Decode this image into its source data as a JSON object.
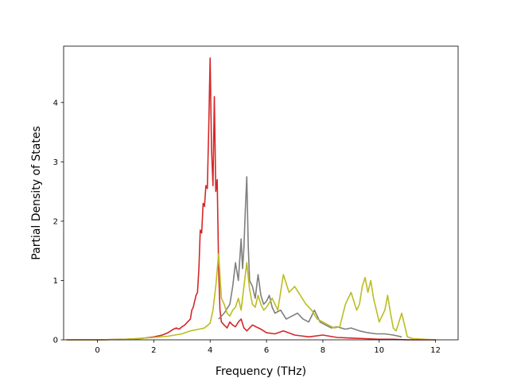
{
  "chart_data": {
    "type": "line",
    "title": "",
    "xlabel": "Frequency (THz)",
    "ylabel": "Partial Density of States",
    "xlim": [
      -1.2,
      12.8
    ],
    "ylim": [
      0,
      4.95
    ],
    "xticks": [
      0,
      2,
      4,
      6,
      8,
      10,
      12
    ],
    "yticks": [
      0,
      1,
      2,
      3,
      4
    ],
    "grid": false,
    "legend": "none",
    "series": [
      {
        "color": "#d62728",
        "x": [
          -1.1,
          0.0,
          1.0,
          1.5,
          2.0,
          2.3,
          2.5,
          2.7,
          2.8,
          2.9,
          3.0,
          3.1,
          3.2,
          3.3,
          3.35,
          3.4,
          3.5,
          3.55,
          3.6,
          3.65,
          3.7,
          3.75,
          3.8,
          3.85,
          3.9,
          3.95,
          4.0,
          4.05,
          4.1,
          4.15,
          4.2,
          4.25,
          4.3,
          4.35,
          4.4,
          4.5,
          4.6,
          4.7,
          4.8,
          4.9,
          5.0,
          5.1,
          5.2,
          5.3,
          5.5,
          5.8,
          6.0,
          6.3,
          6.6,
          7.0,
          7.5,
          8.0,
          8.5,
          9.0,
          9.5,
          10.0,
          10.5,
          11.0,
          12.0
        ],
        "y": [
          0,
          0,
          0.01,
          0.02,
          0.05,
          0.08,
          0.12,
          0.18,
          0.2,
          0.18,
          0.22,
          0.25,
          0.3,
          0.35,
          0.5,
          0.55,
          0.75,
          0.8,
          1.2,
          1.85,
          1.8,
          2.3,
          2.25,
          2.6,
          2.55,
          3.6,
          4.75,
          3.2,
          2.6,
          4.1,
          2.5,
          2.7,
          1.2,
          0.5,
          0.3,
          0.25,
          0.2,
          0.3,
          0.25,
          0.22,
          0.3,
          0.35,
          0.2,
          0.15,
          0.25,
          0.18,
          0.12,
          0.1,
          0.15,
          0.08,
          0.05,
          0.08,
          0.04,
          0.03,
          0.02,
          0.01,
          0.01,
          0,
          0
        ]
      },
      {
        "color": "#7f7f7f",
        "x": [
          4.3,
          4.5,
          4.7,
          4.8,
          4.9,
          5.0,
          5.1,
          5.15,
          5.2,
          5.25,
          5.3,
          5.35,
          5.4,
          5.5,
          5.6,
          5.7,
          5.8,
          5.9,
          6.0,
          6.1,
          6.2,
          6.3,
          6.5,
          6.7,
          6.9,
          7.1,
          7.3,
          7.5,
          7.7,
          7.9,
          8.1,
          8.3,
          8.5,
          8.8,
          9.0,
          9.3,
          9.6,
          9.9,
          10.2,
          10.5,
          10.8
        ],
        "y": [
          0.35,
          0.45,
          0.6,
          0.9,
          1.3,
          1.0,
          1.7,
          1.2,
          1.55,
          2.2,
          2.75,
          1.6,
          1.0,
          0.9,
          0.7,
          1.1,
          0.75,
          0.6,
          0.65,
          0.75,
          0.55,
          0.45,
          0.5,
          0.35,
          0.4,
          0.45,
          0.35,
          0.3,
          0.5,
          0.3,
          0.25,
          0.2,
          0.22,
          0.18,
          0.2,
          0.15,
          0.12,
          0.1,
          0.1,
          0.08,
          0.05
        ]
      },
      {
        "color": "#bcbd22",
        "x": [
          -1.1,
          0.0,
          1.0,
          2.0,
          2.5,
          3.0,
          3.3,
          3.6,
          3.8,
          4.0,
          4.1,
          4.2,
          4.3,
          4.4,
          4.5,
          4.6,
          4.7,
          4.8,
          4.9,
          5.0,
          5.1,
          5.2,
          5.3,
          5.4,
          5.5,
          5.6,
          5.7,
          5.8,
          5.9,
          6.0,
          6.2,
          6.4,
          6.6,
          6.8,
          7.0,
          7.2,
          7.4,
          7.6,
          7.8,
          8.0,
          8.2,
          8.4,
          8.6,
          8.8,
          9.0,
          9.2,
          9.3,
          9.4,
          9.5,
          9.6,
          9.7,
          9.8,
          10.0,
          10.2,
          10.3,
          10.4,
          10.5,
          10.6,
          10.8,
          11.0,
          11.2,
          12.0
        ],
        "y": [
          0,
          0,
          0.01,
          0.04,
          0.06,
          0.1,
          0.15,
          0.18,
          0.2,
          0.28,
          0.5,
          0.9,
          1.45,
          0.7,
          0.6,
          0.45,
          0.4,
          0.5,
          0.55,
          0.7,
          0.5,
          0.9,
          1.3,
          0.85,
          0.6,
          0.55,
          0.75,
          0.6,
          0.5,
          0.55,
          0.7,
          0.5,
          1.1,
          0.8,
          0.9,
          0.75,
          0.6,
          0.5,
          0.35,
          0.3,
          0.25,
          0.2,
          0.22,
          0.6,
          0.8,
          0.5,
          0.6,
          0.9,
          1.05,
          0.8,
          1.0,
          0.7,
          0.3,
          0.5,
          0.75,
          0.45,
          0.2,
          0.15,
          0.45,
          0.05,
          0.02,
          0
        ]
      }
    ]
  }
}
